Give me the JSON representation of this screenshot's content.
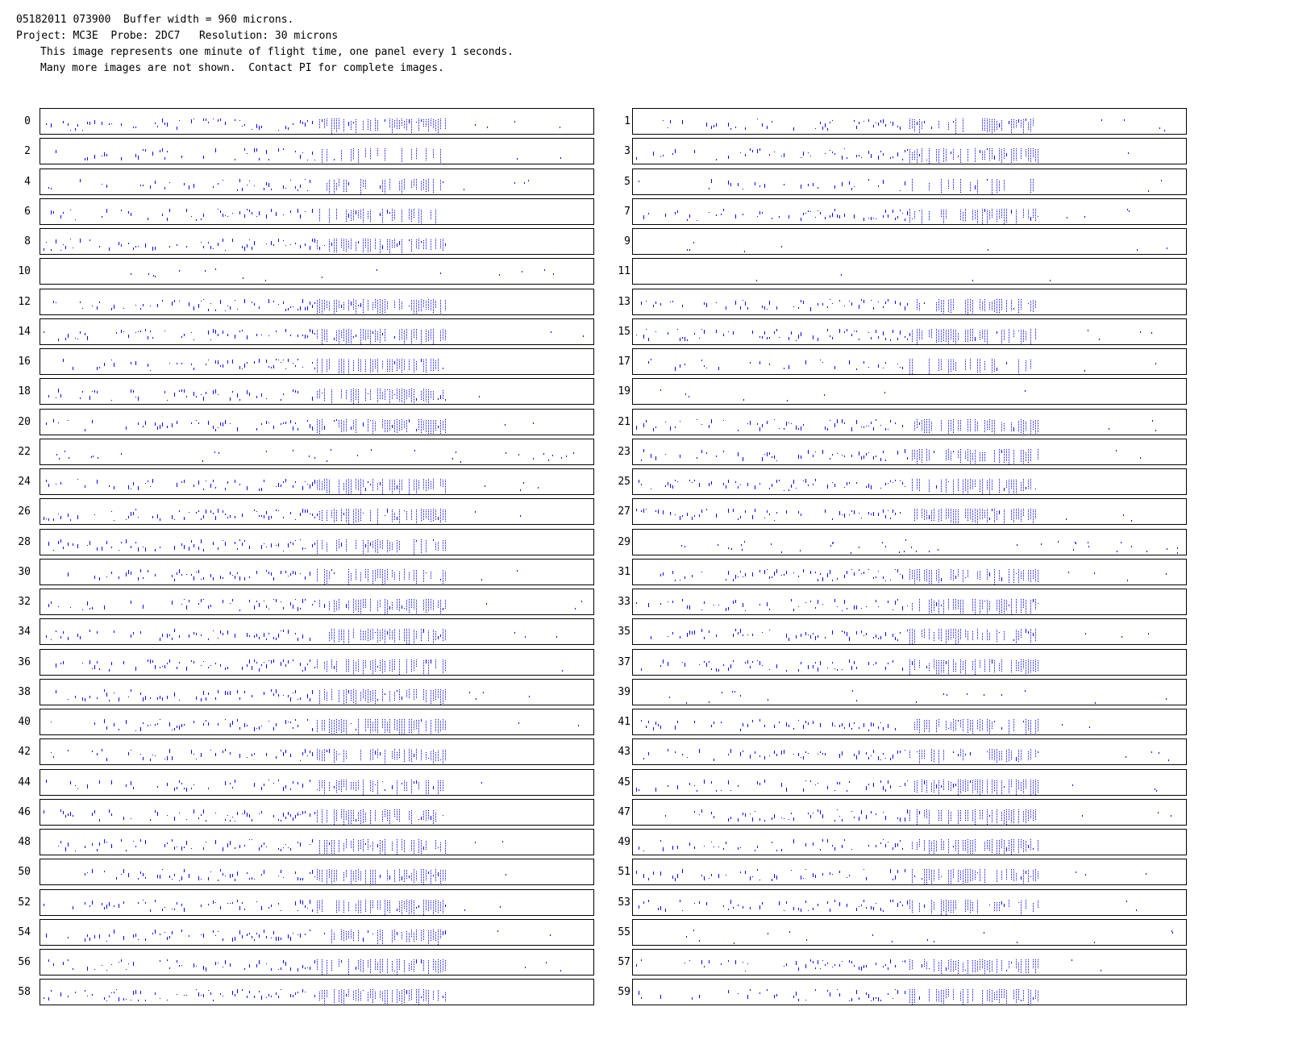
{
  "header": {
    "line1": "05182011 073900  Buffer width = 960 microns.",
    "line2": "Project: MC3E  Probe: 2DC7   Resolution: 30 microns",
    "line3": "This image represents one minute of flight time, one panel every 1 seconds.",
    "line4": "Many more images are not shown.  Contact PI for complete images."
  },
  "colors": {
    "particle": "#0000ff",
    "frame": "#000000",
    "background": "#ffffff"
  },
  "panels": [
    {
      "label": "0",
      "density": 0.75,
      "extent": 0.73
    },
    {
      "label": "1",
      "density": 0.75,
      "extent": 0.73
    },
    {
      "label": "2",
      "density": 0.5,
      "extent": 0.73
    },
    {
      "label": "3",
      "density": 0.75,
      "extent": 0.73
    },
    {
      "label": "4",
      "density": 0.6,
      "extent": 0.73
    },
    {
      "label": "5",
      "density": 0.3,
      "extent": 0.73
    },
    {
      "label": "6",
      "density": 0.65,
      "extent": 0.73
    },
    {
      "label": "7",
      "density": 0.7,
      "extent": 0.73
    },
    {
      "label": "8",
      "density": 0.75,
      "extent": 0.73
    },
    {
      "label": "9",
      "density": 0.02,
      "extent": 0.73
    },
    {
      "label": "10",
      "density": 0.04,
      "extent": 0.73
    },
    {
      "label": "11",
      "density": 0.01,
      "extent": 0.73
    },
    {
      "label": "12",
      "density": 0.8,
      "extent": 0.73
    },
    {
      "label": "13",
      "density": 0.75,
      "extent": 0.73
    },
    {
      "label": "14",
      "density": 0.85,
      "extent": 0.73
    },
    {
      "label": "15",
      "density": 0.75,
      "extent": 0.73
    },
    {
      "label": "16",
      "density": 0.8,
      "extent": 0.73
    },
    {
      "label": "17",
      "density": 0.5,
      "extent": 0.73
    },
    {
      "label": "18",
      "density": 0.75,
      "extent": 0.73
    },
    {
      "label": "19",
      "density": 0.02,
      "extent": 0.73
    },
    {
      "label": "20",
      "density": 0.75,
      "extent": 0.73
    },
    {
      "label": "21",
      "density": 0.75,
      "extent": 0.73
    },
    {
      "label": "22",
      "density": 0.08,
      "extent": 0.73
    },
    {
      "label": "23",
      "density": 0.75,
      "extent": 0.73
    },
    {
      "label": "24",
      "density": 0.8,
      "extent": 0.73
    },
    {
      "label": "25",
      "density": 0.8,
      "extent": 0.73
    },
    {
      "label": "26",
      "density": 0.85,
      "extent": 0.73
    },
    {
      "label": "27",
      "density": 0.85,
      "extent": 0.73
    },
    {
      "label": "28",
      "density": 0.75,
      "extent": 0.73
    },
    {
      "label": "29",
      "density": 0.1,
      "extent": 0.73
    },
    {
      "label": "30",
      "density": 0.75,
      "extent": 0.73
    },
    {
      "label": "31",
      "density": 0.75,
      "extent": 0.73
    },
    {
      "label": "32",
      "density": 0.8,
      "extent": 0.73
    },
    {
      "label": "33",
      "density": 0.75,
      "extent": 0.73
    },
    {
      "label": "34",
      "density": 0.85,
      "extent": 0.73
    },
    {
      "label": "35",
      "density": 0.8,
      "extent": 0.73
    },
    {
      "label": "36",
      "density": 0.8,
      "extent": 0.73
    },
    {
      "label": "37",
      "density": 0.75,
      "extent": 0.73
    },
    {
      "label": "38",
      "density": 0.75,
      "extent": 0.73
    },
    {
      "label": "39",
      "density": 0.05,
      "extent": 0.73
    },
    {
      "label": "40",
      "density": 0.8,
      "extent": 0.73
    },
    {
      "label": "41",
      "density": 0.75,
      "extent": 0.73
    },
    {
      "label": "42",
      "density": 0.6,
      "extent": 0.73
    },
    {
      "label": "43",
      "density": 0.75,
      "extent": 0.73
    },
    {
      "label": "44",
      "density": 0.75,
      "extent": 0.73
    },
    {
      "label": "45",
      "density": 0.8,
      "extent": 0.73
    },
    {
      "label": "46",
      "density": 0.75,
      "extent": 0.73
    },
    {
      "label": "47",
      "density": 0.75,
      "extent": 0.73
    },
    {
      "label": "48",
      "density": 0.8,
      "extent": 0.73
    },
    {
      "label": "49",
      "density": 0.75,
      "extent": 0.73
    },
    {
      "label": "50",
      "density": 0.8,
      "extent": 0.73
    },
    {
      "label": "51",
      "density": 0.8,
      "extent": 0.73
    },
    {
      "label": "52",
      "density": 0.8,
      "extent": 0.73
    },
    {
      "label": "53",
      "density": 0.8,
      "extent": 0.73
    },
    {
      "label": "54",
      "density": 0.8,
      "extent": 0.73
    },
    {
      "label": "55",
      "density": 0.04,
      "extent": 0.73
    },
    {
      "label": "56",
      "density": 0.8,
      "extent": 0.73
    },
    {
      "label": "57",
      "density": 0.8,
      "extent": 0.73
    },
    {
      "label": "58",
      "density": 0.75,
      "extent": 0.73
    },
    {
      "label": "59",
      "density": 0.75,
      "extent": 0.73
    }
  ]
}
